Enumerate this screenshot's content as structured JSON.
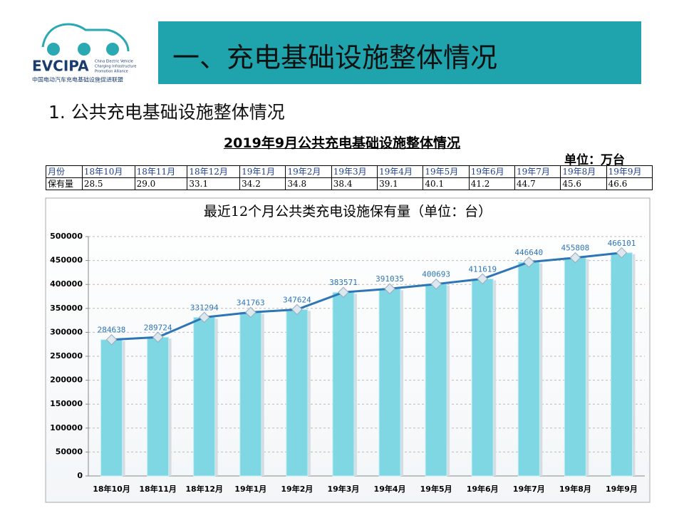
{
  "logo": {
    "name": "EVCIPA",
    "en": [
      "China Electric Vehicle",
      "Charging Infrastructure",
      "Promotion Alliance"
    ],
    "cn": "中国电动汽车充电基础设施促进联盟"
  },
  "header": {
    "title": "一、充电基础设施整体情况"
  },
  "subtitle": "1. 公共充电基础设施整体情况",
  "table": {
    "title": "2019年9月公共充电基础设施整体情况",
    "unit": "单位：万台",
    "rows": [
      [
        "月份",
        "18年10月",
        "18年11月",
        "18年12月",
        "19年1月",
        "19年2月",
        "19年3月",
        "19年4月",
        "19年5月",
        "19年6月",
        "19年7月",
        "19年8月",
        "19年9月"
      ],
      [
        "保有量",
        "28.5",
        "29.0",
        "33.1",
        "34.2",
        "34.8",
        "38.4",
        "39.1",
        "40.1",
        "41.2",
        "44.7",
        "45.6",
        "46.6"
      ]
    ]
  },
  "chart_data": {
    "type": "bar",
    "title": "最近12个月公共类充电设施保有量（单位：台）",
    "categories": [
      "18年10月",
      "18年11月",
      "18年12月",
      "19年1月",
      "19年2月",
      "19年3月",
      "19年4月",
      "19年5月",
      "19年6月",
      "19年7月",
      "19年8月",
      "19年9月"
    ],
    "values": [
      284638,
      289724,
      331294,
      341763,
      347624,
      383571,
      391035,
      400693,
      411619,
      446640,
      455808,
      466101
    ],
    "color": "#7fd7e4",
    "line_overlay": true,
    "line_color": "#2e75b6",
    "ylim": [
      0,
      500000
    ],
    "yticks": [
      0,
      50000,
      100000,
      150000,
      200000,
      250000,
      300000,
      350000,
      400000,
      450000,
      500000
    ],
    "grid": true
  }
}
